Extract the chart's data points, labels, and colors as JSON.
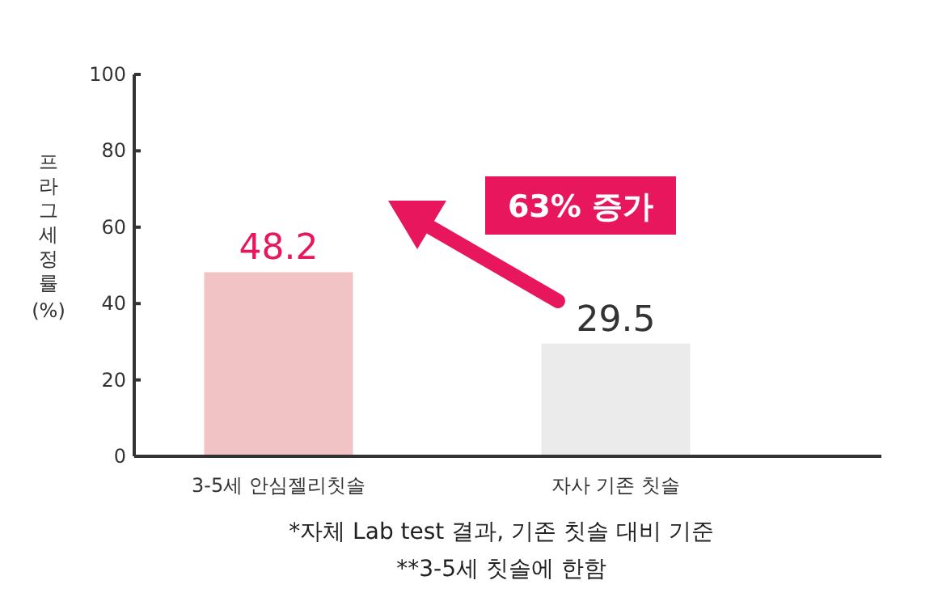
{
  "chart_data": {
    "type": "bar",
    "ylabel": "프라그세정률 (%)",
    "categories": [
      "3-5세 안심젤리칫솔",
      "자사 기존 칫솔"
    ],
    "values": [
      48.2,
      29.5
    ],
    "colors": [
      "#f2c3c4",
      "#ebebeb"
    ],
    "ylim": [
      0,
      100
    ],
    "yticks": [
      0,
      20,
      40,
      60,
      80,
      100
    ],
    "data_labels": true,
    "annotations": [
      "63% 증가",
      "*자체 Lab test 결과, 기존 칫솔 대비 기준",
      "**3-5세 칫솔에 한함"
    ]
  }
}
